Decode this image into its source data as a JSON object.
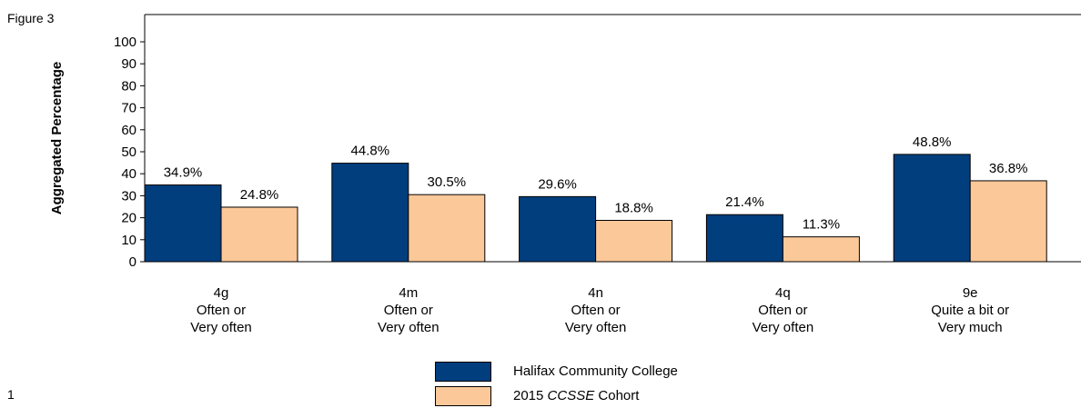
{
  "figure_label": "Figure 3",
  "page_number": "1",
  "colors": {
    "college": "#003e7e",
    "cohort": "#fbc899"
  },
  "chart_data": {
    "type": "bar",
    "ylabel": "Aggregated Percentage",
    "ylim": [
      0,
      100
    ],
    "yticks": [
      0,
      10,
      20,
      30,
      40,
      50,
      60,
      70,
      80,
      90,
      100
    ],
    "categories": [
      [
        "4g",
        "Often or",
        "Very often"
      ],
      [
        "4m",
        "Often or",
        "Very often"
      ],
      [
        "4n",
        "Often or",
        "Very often"
      ],
      [
        "4q",
        "Often or",
        "Very often"
      ],
      [
        "9e",
        "Quite a bit or",
        "Very much"
      ]
    ],
    "series": [
      {
        "name": "Halifax Community College",
        "values": [
          34.9,
          44.8,
          29.6,
          21.4,
          48.8
        ],
        "labels": [
          "34.9%",
          "44.8%",
          "29.6%",
          "21.4%",
          "48.8%"
        ]
      },
      {
        "name_prefix": "2015 ",
        "name_italic": "CCSSE",
        "name_suffix": " Cohort",
        "values": [
          24.8,
          30.5,
          18.8,
          11.3,
          36.8
        ],
        "labels": [
          "24.8%",
          "30.5%",
          "18.8%",
          "11.3%",
          "36.8%"
        ]
      }
    ],
    "legend": "bottom-center",
    "grid": false
  }
}
